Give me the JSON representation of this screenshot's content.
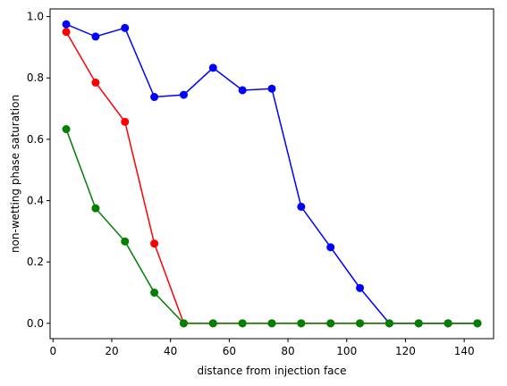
{
  "chart_data": {
    "type": "line",
    "title": "",
    "xlabel": "distance from injection face",
    "ylabel": "non-wetting phase saturation",
    "xlim": [
      -1.0,
      150.0
    ],
    "ylim": [
      -0.05,
      1.025
    ],
    "xticks": [
      0,
      20,
      40,
      60,
      80,
      100,
      120,
      140
    ],
    "yticks": [
      0.0,
      0.2,
      0.4,
      0.6,
      0.8,
      1.0
    ],
    "xtick_labels": [
      "0",
      "20",
      "40",
      "60",
      "80",
      "100",
      "120",
      "140"
    ],
    "ytick_labels": [
      "0.0",
      "0.2",
      "0.4",
      "0.6",
      "0.8",
      "1.0"
    ],
    "grid": false,
    "legend": "none",
    "x": [
      4.5,
      14.5,
      24.5,
      34.5,
      44.5,
      54.5,
      64.5,
      74.5,
      84.5,
      94.5,
      104.5,
      114.5,
      124.5,
      134.5,
      144.5
    ],
    "series": [
      {
        "color": "#0000ff",
        "values": [
          0.975,
          0.935,
          0.963,
          0.738,
          0.745,
          0.833,
          0.76,
          0.765,
          0.38,
          0.248,
          0.115,
          0.0,
          0.0,
          0.0,
          0.0
        ]
      },
      {
        "color": "#ff0000",
        "values": [
          0.95,
          0.785,
          0.657,
          0.26,
          0.0,
          0.0,
          0.0,
          0.0,
          0.0,
          0.0,
          0.0,
          0.0,
          0.0,
          0.0,
          0.0
        ]
      },
      {
        "color": "#008000",
        "values": [
          0.633,
          0.375,
          0.267,
          0.1,
          0.0,
          0.0,
          0.0,
          0.0,
          0.0,
          0.0,
          0.0,
          0.0,
          0.0,
          0.0,
          0.0
        ]
      }
    ]
  }
}
